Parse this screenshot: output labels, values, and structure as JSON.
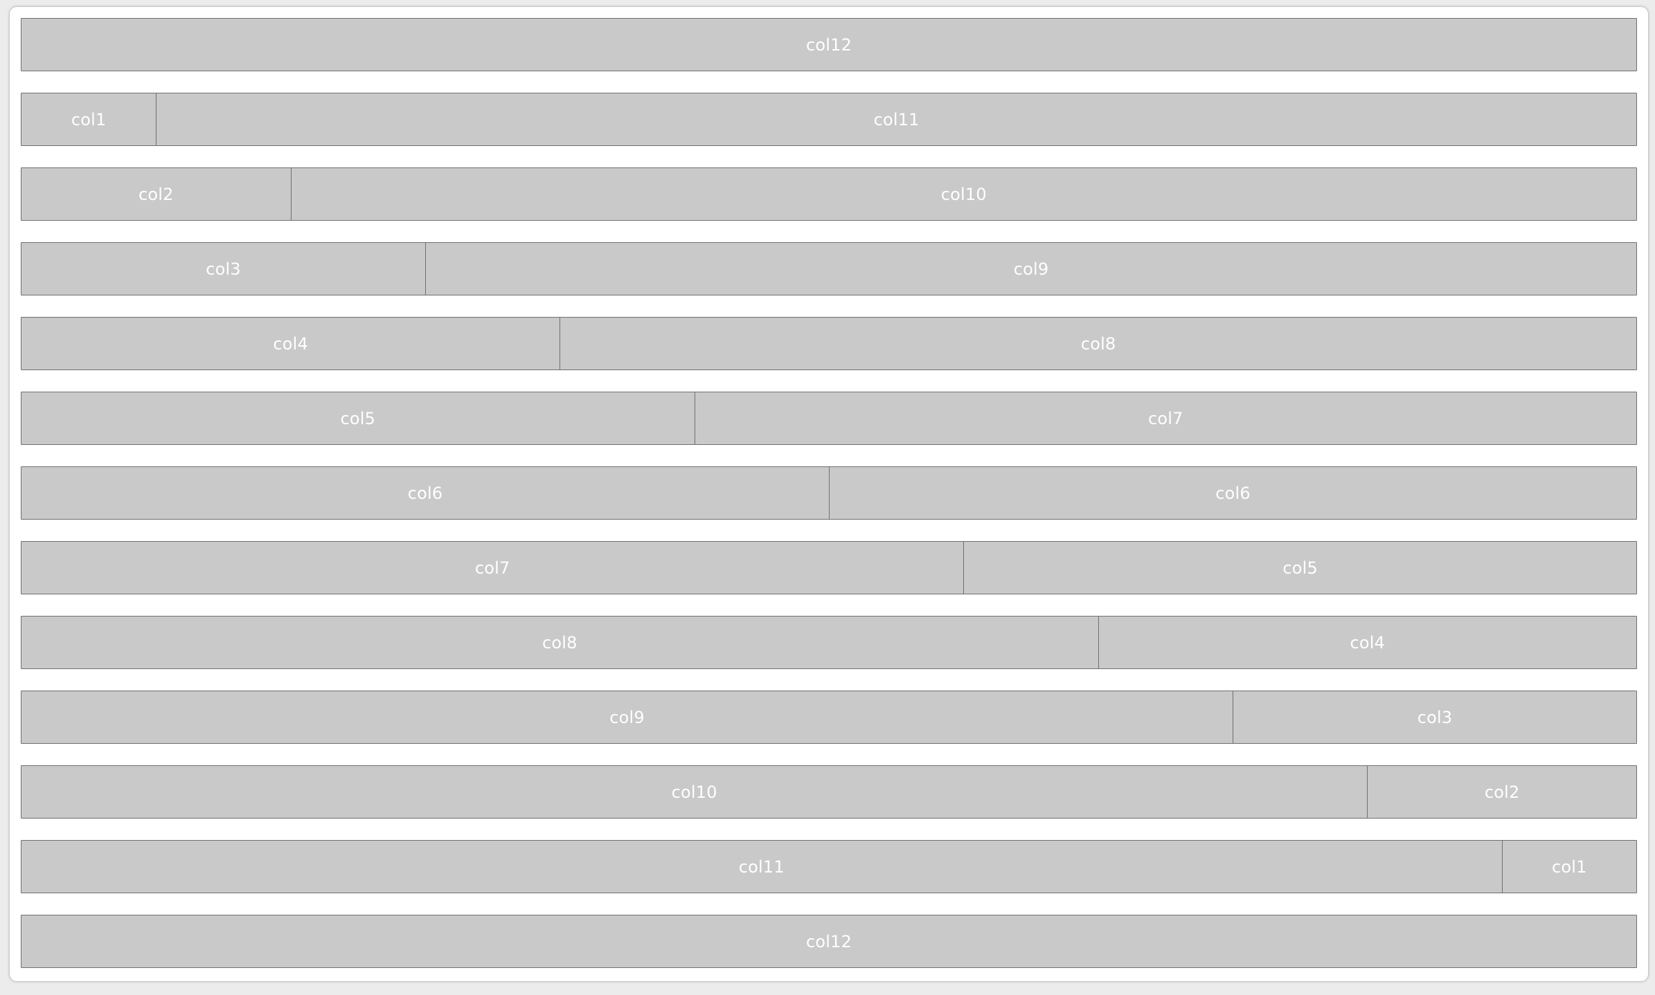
{
  "colors": {
    "page_background": "#ececec",
    "panel_background": "#ffffff",
    "cell_fill": "#c9c9c9",
    "cell_border": "#6f6f6f",
    "cell_text": "#ffffff"
  },
  "grid": {
    "total_columns": 12,
    "rows": [
      {
        "cells": [
          {
            "label": "col12",
            "span": 12
          }
        ]
      },
      {
        "cells": [
          {
            "label": "col1",
            "span": 1
          },
          {
            "label": "col11",
            "span": 11
          }
        ]
      },
      {
        "cells": [
          {
            "label": "col2",
            "span": 2
          },
          {
            "label": "col10",
            "span": 10
          }
        ]
      },
      {
        "cells": [
          {
            "label": "col3",
            "span": 3
          },
          {
            "label": "col9",
            "span": 9
          }
        ]
      },
      {
        "cells": [
          {
            "label": "col4",
            "span": 4
          },
          {
            "label": "col8",
            "span": 8
          }
        ]
      },
      {
        "cells": [
          {
            "label": "col5",
            "span": 5
          },
          {
            "label": "col7",
            "span": 7
          }
        ]
      },
      {
        "cells": [
          {
            "label": "col6",
            "span": 6
          },
          {
            "label": "col6",
            "span": 6
          }
        ]
      },
      {
        "cells": [
          {
            "label": "col7",
            "span": 7
          },
          {
            "label": "col5",
            "span": 5
          }
        ]
      },
      {
        "cells": [
          {
            "label": "col8",
            "span": 8
          },
          {
            "label": "col4",
            "span": 4
          }
        ]
      },
      {
        "cells": [
          {
            "label": "col9",
            "span": 9
          },
          {
            "label": "col3",
            "span": 3
          }
        ]
      },
      {
        "cells": [
          {
            "label": "col10",
            "span": 10
          },
          {
            "label": "col2",
            "span": 2
          }
        ]
      },
      {
        "cells": [
          {
            "label": "col11",
            "span": 11
          },
          {
            "label": "col1",
            "span": 1
          }
        ]
      },
      {
        "cells": [
          {
            "label": "col12",
            "span": 12
          }
        ]
      }
    ]
  }
}
